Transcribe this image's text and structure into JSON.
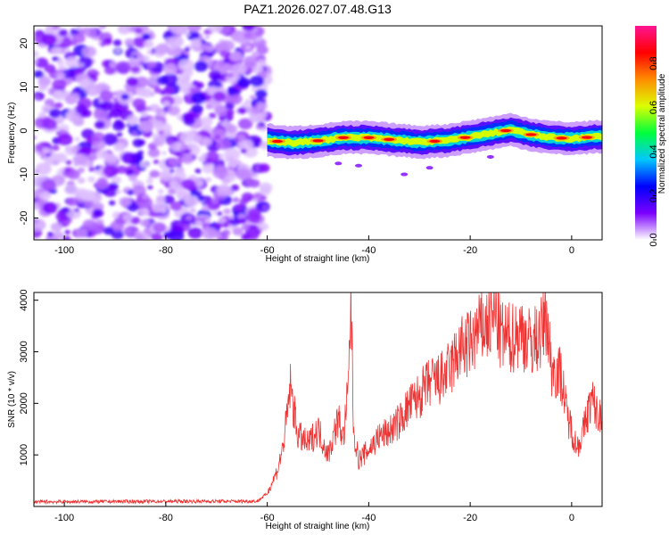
{
  "title": "PAZ1.2026.027.07.48.G13",
  "chart_data": [
    {
      "type": "heatmap",
      "name": "spectrogram",
      "xlabel": "Height of straight line (km)",
      "ylabel": "Frequency (Hz)",
      "xlim": [
        -106,
        6
      ],
      "ylim": [
        -25,
        24
      ],
      "x_ticks": [
        -100,
        -80,
        -60,
        -40,
        -20,
        0
      ],
      "y_ticks": [
        -20,
        -10,
        0,
        10,
        20
      ],
      "noise_region_x": [
        -106,
        -60
      ],
      "signal_region_x": [
        -60,
        6
      ],
      "signal_centerline": [
        {
          "x": -60,
          "y": -2.2
        },
        {
          "x": -55,
          "y": -2.8
        },
        {
          "x": -50,
          "y": -2.3
        },
        {
          "x": -45,
          "y": -1.6
        },
        {
          "x": -40,
          "y": -1.6
        },
        {
          "x": -35,
          "y": -2.1
        },
        {
          "x": -30,
          "y": -2.6
        },
        {
          "x": -25,
          "y": -2.3
        },
        {
          "x": -20,
          "y": -1.4
        },
        {
          "x": -15,
          "y": -0.4
        },
        {
          "x": -12,
          "y": 0.2
        },
        {
          "x": -8,
          "y": -0.9
        },
        {
          "x": -4,
          "y": -1.6
        },
        {
          "x": 0,
          "y": -1.8
        },
        {
          "x": 6,
          "y": -1.3
        }
      ],
      "colorbar": {
        "label": "Normalized spectral amplitude",
        "range": [
          0,
          0.97
        ],
        "ticks": [
          0.0,
          0.2,
          0.4,
          0.6,
          0.8
        ],
        "tick_labels": [
          "0.0",
          "0.2",
          "0.4",
          "0.6",
          "0.8"
        ],
        "colors": [
          "#ffffff",
          "#7b00ff",
          "#0000ff",
          "#00c8ff",
          "#00ff3c",
          "#dcff00",
          "#ff8c00",
          "#ff0000",
          "#ff1493"
        ]
      }
    },
    {
      "type": "line",
      "name": "snr",
      "xlabel": "Height of straight line (km)",
      "ylabel": "SNR (10 * v/v)",
      "xlim": [
        -106,
        6
      ],
      "ylim": [
        0,
        4150
      ],
      "x_ticks": [
        -100,
        -80,
        -60,
        -40,
        -20,
        0
      ],
      "y_ticks": [
        1000,
        2000,
        3000,
        4000
      ],
      "color": "#ee3333",
      "series": [
        {
          "name": "SNR",
          "x": [
            -106,
            -90,
            -75,
            -62,
            -60,
            -58,
            -57,
            -56,
            -55.5,
            -54,
            -52,
            -50,
            -48,
            -46,
            -45,
            -44,
            -43.5,
            -43,
            -42,
            -40,
            -38,
            -36,
            -34,
            -32,
            -30,
            -28,
            -26,
            -24,
            -22,
            -20,
            -18,
            -16,
            -15,
            -14,
            -12,
            -10,
            -8,
            -6,
            -5,
            -4,
            -2,
            -1,
            0,
            1,
            2,
            3,
            4,
            5,
            6
          ],
          "y": [
            90,
            95,
            100,
            100,
            250,
            700,
            1100,
            1800,
            2350,
            1400,
            1200,
            1500,
            1000,
            1700,
            1300,
            2300,
            4100,
            1500,
            900,
            1100,
            1350,
            1450,
            1650,
            1950,
            2150,
            2400,
            2450,
            2650,
            3050,
            3150,
            3450,
            3550,
            3750,
            3300,
            3250,
            3400,
            3150,
            3350,
            3750,
            2700,
            2550,
            1800,
            1500,
            1150,
            1350,
            1750,
            2100,
            1800,
            1700
          ]
        }
      ]
    }
  ]
}
